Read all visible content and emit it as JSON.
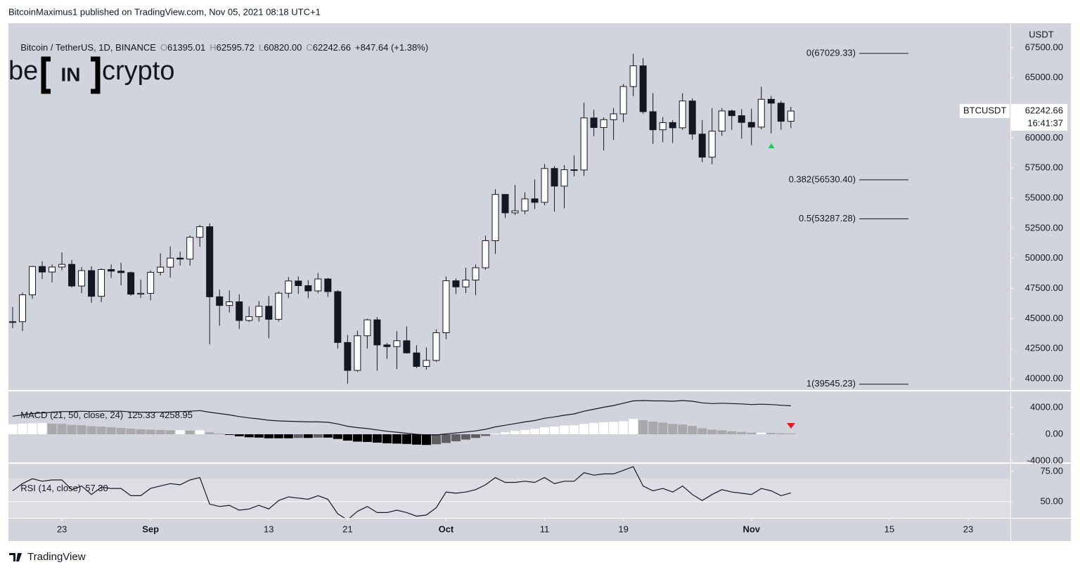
{
  "header": "BitcoinMaximus1 published on TradingView.com, Nov 05, 2021 08:18 UTC+1",
  "footer": "TradingView",
  "watermark": {
    "pre": "be",
    "mid": "IN",
    "post": "crypto"
  },
  "chart_data": [
    {
      "type": "candlestick",
      "title": "Bitcoin / TetherUS, 1D, BINANCE",
      "legend_keys": [
        "O",
        "H",
        "L",
        "C"
      ],
      "legend_values": [
        "61395.01",
        "62595.72",
        "60820.00",
        "62242.66"
      ],
      "legend_change": "+847.64 (+1.38%)",
      "axis_unit": "USDT",
      "symbol": "BTCUSDT",
      "last_price": "62242.66",
      "countdown": "16:41:37",
      "xlim": [
        "2021-08-18",
        "2021-11-27"
      ],
      "xticks": [
        {
          "value": "2021-08-23",
          "label": "23"
        },
        {
          "value": "2021-09-01",
          "label": "Sep"
        },
        {
          "value": "2021-09-13",
          "label": "13"
        },
        {
          "value": "2021-09-21",
          "label": "21"
        },
        {
          "value": "2021-10-01",
          "label": "Oct"
        },
        {
          "value": "2021-10-11",
          "label": "11"
        },
        {
          "value": "2021-10-19",
          "label": "19"
        },
        {
          "value": "2021-11-01",
          "label": "Nov"
        },
        {
          "value": "2021-11-15",
          "label": "15"
        },
        {
          "value": "2021-11-23",
          "label": "23"
        }
      ],
      "ylim": [
        39066,
        69543
      ],
      "yticks": [
        {
          "value": 67500,
          "label": "67500.00"
        },
        {
          "value": 65000,
          "label": "65000.00"
        },
        {
          "value": 62500,
          "label": "62500.00"
        },
        {
          "value": 60000,
          "label": "60000.00"
        },
        {
          "value": 57500,
          "label": "57500.00"
        },
        {
          "value": 55000,
          "label": "55000.00"
        },
        {
          "value": 52500,
          "label": "52500.00"
        },
        {
          "value": 50000,
          "label": "50000.00"
        },
        {
          "value": 47500,
          "label": "47500.00"
        },
        {
          "value": 45000,
          "label": "45000.00"
        },
        {
          "value": 42500,
          "label": "42500.00"
        },
        {
          "value": 40000,
          "label": "40000.00"
        }
      ],
      "up_color": "#ffffff",
      "down_color": "#131722",
      "fib_levels": [
        {
          "label": "0(67029.33)",
          "value": 67029.33
        },
        {
          "label": "0.382(56530.40)",
          "value": 56530.4
        },
        {
          "label": "0.5(53287.28)",
          "value": 53287.28
        },
        {
          "label": "1(39545.23)",
          "value": 39545.23
        }
      ],
      "x": [
        "2021-08-18",
        "2021-08-19",
        "2021-08-20",
        "2021-08-21",
        "2021-08-22",
        "2021-08-23",
        "2021-08-24",
        "2021-08-25",
        "2021-08-26",
        "2021-08-27",
        "2021-08-28",
        "2021-08-29",
        "2021-08-30",
        "2021-08-31",
        "2021-09-01",
        "2021-09-02",
        "2021-09-03",
        "2021-09-04",
        "2021-09-05",
        "2021-09-06",
        "2021-09-07",
        "2021-09-08",
        "2021-09-09",
        "2021-09-10",
        "2021-09-11",
        "2021-09-12",
        "2021-09-13",
        "2021-09-14",
        "2021-09-15",
        "2021-09-16",
        "2021-09-17",
        "2021-09-18",
        "2021-09-19",
        "2021-09-20",
        "2021-09-21",
        "2021-09-22",
        "2021-09-23",
        "2021-09-24",
        "2021-09-25",
        "2021-09-26",
        "2021-09-27",
        "2021-09-28",
        "2021-09-29",
        "2021-09-30",
        "2021-10-01",
        "2021-10-02",
        "2021-10-03",
        "2021-10-04",
        "2021-10-05",
        "2021-10-06",
        "2021-10-07",
        "2021-10-08",
        "2021-10-09",
        "2021-10-10",
        "2021-10-11",
        "2021-10-12",
        "2021-10-13",
        "2021-10-14",
        "2021-10-15",
        "2021-10-16",
        "2021-10-17",
        "2021-10-18",
        "2021-10-19",
        "2021-10-20",
        "2021-10-21",
        "2021-10-22",
        "2021-10-23",
        "2021-10-24",
        "2021-10-25",
        "2021-10-26",
        "2021-10-27",
        "2021-10-28",
        "2021-10-29",
        "2021-10-30",
        "2021-10-31",
        "2021-11-01",
        "2021-11-02",
        "2021-11-03",
        "2021-11-04",
        "2021-11-05"
      ],
      "open": [
        44680,
        44742,
        46972,
        49327,
        48869,
        49285,
        49507,
        47707,
        48984,
        46851,
        49077,
        48943,
        48820,
        47025,
        47100,
        48847,
        49277,
        50025,
        49944,
        51754,
        52633,
        46811,
        46091,
        46392,
        44843,
        45161,
        46026,
        44940,
        47111,
        48122,
        47737,
        47299,
        48292,
        47241,
        43013,
        40694,
        43574,
        44895,
        42810,
        42670,
        43160,
        42147,
        41026,
        41524,
        43824,
        48141,
        47634,
        48200,
        49224,
        51471,
        55315,
        53785,
        53951,
        54949,
        54659,
        57471,
        56006,
        57367,
        57347,
        61672,
        60875,
        61528,
        62009,
        64280,
        66001,
        62193,
        60688,
        61286,
        60852,
        63078,
        60329,
        58413,
        60575,
        62253,
        61859,
        61300,
        60911,
        63219,
        62896,
        61395.01
      ],
      "high": [
        45962,
        47161,
        49382,
        49757,
        49500,
        50500,
        49876,
        49284,
        49343,
        49175,
        49500,
        49632,
        48910,
        48244,
        49000,
        50420,
        51000,
        50560,
        51900,
        52780,
        52920,
        47400,
        47340,
        47030,
        46000,
        46460,
        46880,
        47250,
        48450,
        48500,
        48186,
        48800,
        48373,
        47359,
        43640,
        44000,
        45000,
        45120,
        42970,
        43950,
        44350,
        42787,
        42600,
        44100,
        48495,
        48336,
        49228,
        49500,
        51886,
        55750,
        55338,
        56100,
        55490,
        56561,
        57839,
        57680,
        57750,
        58550,
        62933,
        62350,
        61720,
        62500,
        64486,
        67000,
        66639,
        63732,
        61747,
        61500,
        63729,
        63293,
        61496,
        62499,
        62499,
        62359,
        62405,
        62437,
        64270,
        63500,
        63086,
        62595.72
      ],
      "low": [
        44203,
        43955,
        46644,
        48285,
        48002,
        49026,
        47600,
        47122,
        46315,
        46371,
        48370,
        47762,
        46903,
        46700,
        46512,
        48584,
        48400,
        49400,
        49400,
        50969,
        42843,
        44412,
        45500,
        44132,
        44722,
        44750,
        43370,
        44750,
        46700,
        47045,
        46700,
        47100,
        46800,
        42500,
        39600,
        40565,
        42500,
        40675,
        41650,
        40800,
        42098,
        40888,
        40753,
        41410,
        43283,
        47044,
        47120,
        46937,
        49057,
        50382,
        53357,
        53617,
        53680,
        54100,
        54415,
        53879,
        54167,
        56818,
        56850,
        60150,
        58963,
        59844,
        61322,
        63481,
        62000,
        59510,
        59650,
        59580,
        60680,
        59860,
        58000,
        57820,
        60174,
        60675,
        59945,
        59405,
        60720,
        60382,
        60677,
        60820
      ],
      "close": [
        44742,
        46972,
        49327,
        48869,
        49285,
        49507,
        47707,
        48984,
        46851,
        49077,
        48943,
        48820,
        47025,
        47100,
        48847,
        49277,
        50025,
        49944,
        51754,
        52633,
        46811,
        46091,
        46392,
        44843,
        45161,
        46026,
        44940,
        47111,
        48122,
        47737,
        47299,
        48292,
        47241,
        43013,
        40694,
        43574,
        44895,
        42810,
        42670,
        43160,
        42147,
        41026,
        41524,
        43824,
        48141,
        47634,
        48200,
        49224,
        51471,
        55315,
        53785,
        53951,
        54949,
        54659,
        57471,
        56006,
        57367,
        57347,
        61672,
        60875,
        61528,
        62009,
        64280,
        66001,
        62193,
        60688,
        61286,
        60852,
        63078,
        60329,
        58413,
        60575,
        62253,
        61859,
        61300,
        60911,
        63219,
        62896,
        61395,
        62242.66
      ]
    },
    {
      "type": "macd",
      "title": "MACD (21, 50, close, 24)",
      "legend_values": [
        "125.33",
        "4258.95"
      ],
      "ylim": [
        -4210,
        6420
      ],
      "yticks": [
        {
          "value": 4000,
          "label": "4000.00"
        },
        {
          "value": 0,
          "label": "0.00"
        },
        {
          "value": -4000,
          "label": "-4000.00"
        }
      ],
      "line_color": "#131722",
      "hist_colors": [
        "#ffffff",
        "#a9a9ab",
        "#5e5f63",
        "#000000"
      ],
      "histogram": [
        1500,
        1600,
        1650,
        1700,
        1600,
        1550,
        1400,
        1350,
        1200,
        1150,
        1050,
        950,
        850,
        750,
        700,
        650,
        600,
        600,
        550,
        600,
        300,
        100,
        -100,
        -300,
        -450,
        -500,
        -600,
        -600,
        -600,
        -550,
        -550,
        -500,
        -500,
        -700,
        -950,
        -1100,
        -1150,
        -1250,
        -1350,
        -1400,
        -1450,
        -1550,
        -1600,
        -1500,
        -1300,
        -1050,
        -800,
        -550,
        -250,
        100,
        300,
        500,
        650,
        800,
        1050,
        1150,
        1300,
        1350,
        1550,
        1700,
        1800,
        1850,
        1950,
        2300,
        2100,
        1900,
        1750,
        1550,
        1450,
        1250,
        900,
        700,
        600,
        450,
        350,
        250,
        250,
        200,
        150,
        125.33
      ],
      "macd": [
        2700,
        2900,
        3100,
        3200,
        3300,
        3400,
        3400,
        3450,
        3400,
        3450,
        3450,
        3450,
        3350,
        3300,
        3300,
        3300,
        3350,
        3400,
        3450,
        3550,
        3300,
        3100,
        2900,
        2650,
        2450,
        2300,
        2100,
        2000,
        1950,
        1900,
        1850,
        1850,
        1800,
        1550,
        1200,
        1000,
        850,
        650,
        450,
        300,
        150,
        0,
        -100,
        -100,
        50,
        200,
        350,
        500,
        750,
        1100,
        1350,
        1600,
        1850,
        2050,
        2400,
        2600,
        2850,
        3050,
        3450,
        3750,
        4050,
        4300,
        4650,
        5000,
        5050,
        5000,
        5000,
        4950,
        5050,
        4950,
        4700,
        4600,
        4650,
        4600,
        4550,
        4450,
        4500,
        4450,
        4350,
        4258.95
      ]
    },
    {
      "type": "line",
      "title": "RSI (14, close)",
      "legend_values": [
        "57.30"
      ],
      "ylim": [
        36.6,
        81.4
      ],
      "yticks": [
        {
          "value": 75,
          "label": "75.00"
        },
        {
          "value": 50,
          "label": "50.00"
        }
      ],
      "color": "#131722",
      "values": [
        59,
        65,
        69,
        67,
        68,
        68,
        60,
        63,
        56,
        62,
        61,
        61,
        55,
        55,
        61,
        63,
        65,
        64,
        68,
        70,
        48,
        46,
        47,
        43,
        44,
        47,
        44,
        51,
        54,
        53,
        52,
        55,
        52,
        40,
        35,
        42,
        46,
        41,
        41,
        43,
        41,
        38,
        39,
        45,
        58,
        57,
        58,
        60,
        64,
        70,
        66,
        66,
        67,
        66,
        70,
        65,
        67,
        67,
        74,
        72,
        73,
        73,
        76,
        79,
        63,
        59,
        61,
        58,
        63,
        56,
        51,
        56,
        60,
        58,
        57,
        56,
        61,
        59,
        55,
        57.3
      ]
    }
  ]
}
